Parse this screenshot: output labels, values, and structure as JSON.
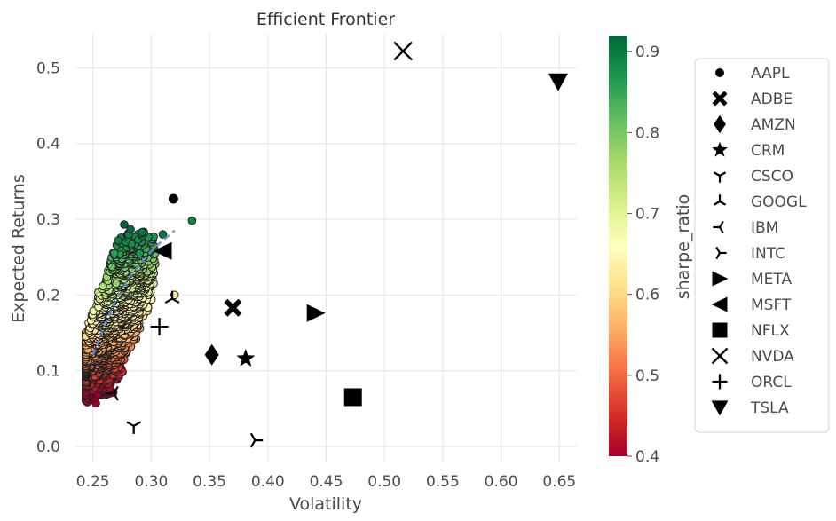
{
  "chart_data": {
    "type": "scatter",
    "title": "Efficient Frontier",
    "xlabel": "Volatility",
    "ylabel": "Expected Returns",
    "xlim": [
      0.235,
      0.665
    ],
    "ylim": [
      -0.02,
      0.545
    ],
    "xticks": [
      "0.25",
      "0.30",
      "0.35",
      "0.40",
      "0.45",
      "0.50",
      "0.55",
      "0.60",
      "0.65"
    ],
    "yticks": [
      "0.0",
      "0.1",
      "0.2",
      "0.3",
      "0.4",
      "0.5"
    ],
    "grid": true,
    "colorbar": {
      "label": "sharpe_ratio",
      "range": [
        0.4,
        0.92
      ],
      "ticks": [
        "0.4",
        "0.5",
        "0.6",
        "0.7",
        "0.8",
        "0.9"
      ],
      "colormap": "RdYlGn",
      "colors": [
        "#a50026",
        "#d73027",
        "#f46d43",
        "#fdae61",
        "#fee08b",
        "#ffffbf",
        "#d9ef8b",
        "#a6d96a",
        "#66bd63",
        "#1a9850",
        "#006837"
      ]
    },
    "portfolio_cloud": {
      "description_points": "simulated portfolios colored by sharpe_ratio",
      "anchors": [
        {
          "x": 0.245,
          "y": 0.103,
          "sharpe": 0.41
        },
        {
          "x": 0.248,
          "y": 0.145,
          "sharpe": 0.55
        },
        {
          "x": 0.25,
          "y": 0.172,
          "sharpe": 0.66
        },
        {
          "x": 0.265,
          "y": 0.12,
          "sharpe": 0.43
        },
        {
          "x": 0.27,
          "y": 0.215,
          "sharpe": 0.78
        },
        {
          "x": 0.29,
          "y": 0.255,
          "sharpe": 0.87
        },
        {
          "x": 0.31,
          "y": 0.28,
          "sharpe": 0.9
        },
        {
          "x": 0.335,
          "y": 0.298,
          "sharpe": 0.89
        },
        {
          "x": 0.32,
          "y": 0.2,
          "sharpe": 0.62
        }
      ]
    },
    "frontier_line": {
      "x": [
        0.25,
        0.26,
        0.27,
        0.28,
        0.29,
        0.3,
        0.31,
        0.32
      ],
      "y": [
        0.12,
        0.16,
        0.195,
        0.22,
        0.24,
        0.258,
        0.272,
        0.285
      ]
    },
    "assets": [
      {
        "name": "AAPL",
        "marker": "circle",
        "x": 0.319,
        "y": 0.327
      },
      {
        "name": "ADBE",
        "marker": "x-filled",
        "x": 0.37,
        "y": 0.183
      },
      {
        "name": "AMZN",
        "marker": "diamond",
        "x": 0.352,
        "y": 0.121
      },
      {
        "name": "CRM",
        "marker": "star",
        "x": 0.381,
        "y": 0.116
      },
      {
        "name": "CSCO",
        "marker": "tri-down",
        "x": 0.285,
        "y": 0.027
      },
      {
        "name": "GOOGL",
        "marker": "tri-up",
        "x": 0.318,
        "y": 0.195
      },
      {
        "name": "IBM",
        "marker": "tri-left",
        "x": 0.268,
        "y": 0.07
      },
      {
        "name": "INTC",
        "marker": "tri-right",
        "x": 0.389,
        "y": 0.008
      },
      {
        "name": "META",
        "marker": "triangle-right",
        "x": 0.441,
        "y": 0.176
      },
      {
        "name": "MSFT",
        "marker": "triangle-left",
        "x": 0.31,
        "y": 0.258
      },
      {
        "name": "NFLX",
        "marker": "square",
        "x": 0.473,
        "y": 0.065
      },
      {
        "name": "NVDA",
        "marker": "x",
        "x": 0.516,
        "y": 0.522
      },
      {
        "name": "ORCL",
        "marker": "plus",
        "x": 0.307,
        "y": 0.158
      },
      {
        "name": "TSLA",
        "marker": "triangle-down",
        "x": 0.649,
        "y": 0.482
      }
    ]
  }
}
